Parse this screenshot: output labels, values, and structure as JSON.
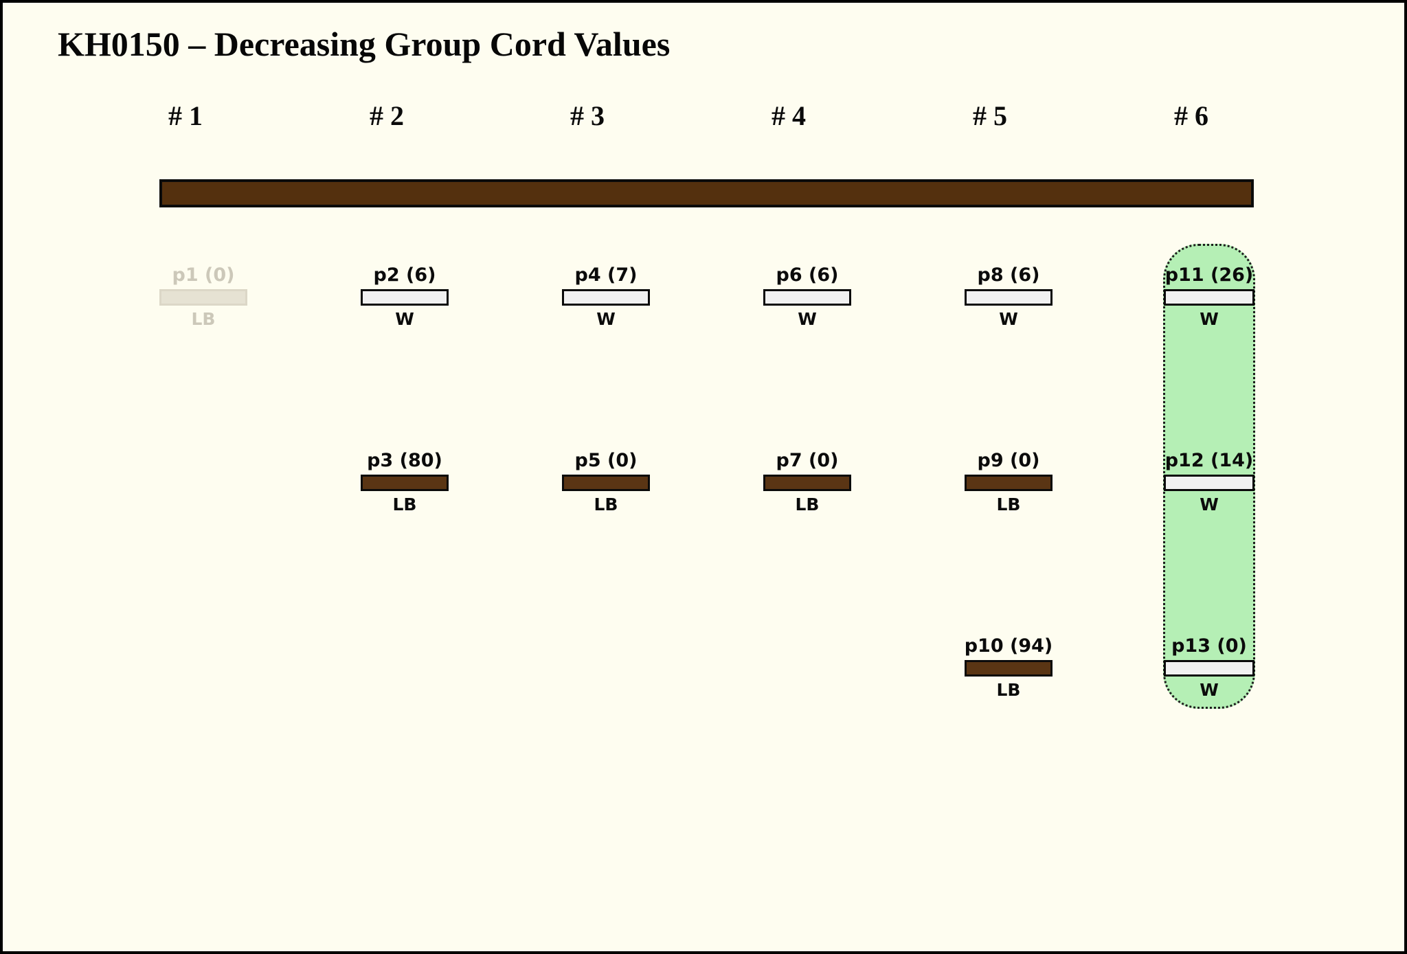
{
  "title": "KH0150 – Decreasing Group Cord Values",
  "columns": [
    {
      "label": "# 1"
    },
    {
      "label": "# 2"
    },
    {
      "label": "# 3"
    },
    {
      "label": "# 4"
    },
    {
      "label": "# 5"
    },
    {
      "label": "# 6"
    }
  ],
  "items": [
    {
      "id": "p1",
      "value": 0,
      "tag": "LB",
      "style": "ghost",
      "col": 1,
      "row": 1
    },
    {
      "id": "p2",
      "value": 6,
      "tag": "W",
      "style": "white",
      "col": 2,
      "row": 1
    },
    {
      "id": "p3",
      "value": 80,
      "tag": "LB",
      "style": "brown",
      "col": 2,
      "row": 2
    },
    {
      "id": "p4",
      "value": 7,
      "tag": "W",
      "style": "white",
      "col": 3,
      "row": 1
    },
    {
      "id": "p5",
      "value": 0,
      "tag": "LB",
      "style": "brown",
      "col": 3,
      "row": 2
    },
    {
      "id": "p6",
      "value": 6,
      "tag": "W",
      "style": "white",
      "col": 4,
      "row": 1
    },
    {
      "id": "p7",
      "value": 0,
      "tag": "LB",
      "style": "brown",
      "col": 4,
      "row": 2
    },
    {
      "id": "p8",
      "value": 6,
      "tag": "W",
      "style": "white",
      "col": 5,
      "row": 1
    },
    {
      "id": "p9",
      "value": 0,
      "tag": "LB",
      "style": "brown",
      "col": 5,
      "row": 2
    },
    {
      "id": "p10",
      "value": 94,
      "tag": "LB",
      "style": "brown",
      "col": 5,
      "row": 3
    },
    {
      "id": "p11",
      "value": 26,
      "tag": "W",
      "style": "white",
      "col": 6,
      "row": 1
    },
    {
      "id": "p12",
      "value": 14,
      "tag": "W",
      "style": "white",
      "col": 6,
      "row": 2
    },
    {
      "id": "p13",
      "value": 0,
      "tag": "W",
      "style": "white",
      "col": 6,
      "row": 3
    }
  ],
  "group": {
    "col": 6,
    "member_ids": [
      "p11",
      "p12",
      "p13"
    ]
  },
  "colors": {
    "background": "#fefdf0",
    "frame": "#000000",
    "cord_bar_fill": "#54300e",
    "brown_bar_fill": "#5a3514",
    "white_bar_fill": "#f1f1f1",
    "ghost_bar_fill": "#e6e2d3",
    "ghost_bar_border": "#dcd7c7",
    "ghost_text": "#ccc8b9",
    "group_fill": "#b5efb5",
    "text": "#0b0b0b"
  }
}
